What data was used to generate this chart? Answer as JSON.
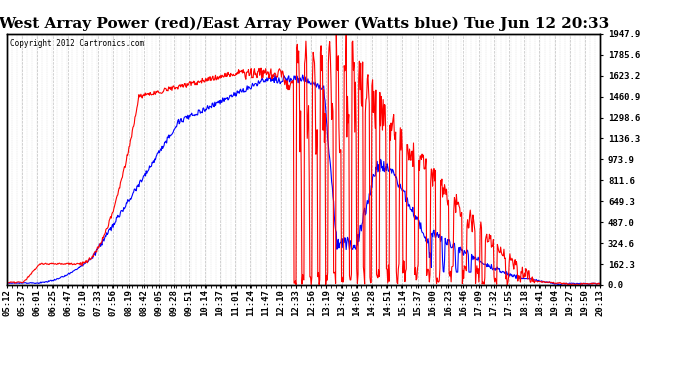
{
  "title": "West Array Power (red)/East Array Power (Watts blue) Tue Jun 12 20:33",
  "copyright": "Copyright 2012 Cartronics.com",
  "ylabel_right_ticks": [
    0.0,
    162.3,
    324.6,
    487.0,
    649.3,
    811.6,
    973.9,
    1136.3,
    1298.6,
    1460.9,
    1623.2,
    1785.6,
    1947.9
  ],
  "ymax": 1947.9,
  "ymin": 0.0,
  "bg_color": "#ffffff",
  "grid_color": "#bbbbbb",
  "title_fontsize": 11,
  "tick_label_fontsize": 6.5,
  "xtick_labels": [
    "05:12",
    "05:37",
    "06:01",
    "06:25",
    "06:47",
    "07:10",
    "07:33",
    "07:56",
    "08:19",
    "08:42",
    "09:05",
    "09:28",
    "09:51",
    "10:14",
    "10:37",
    "11:01",
    "11:24",
    "11:47",
    "12:10",
    "12:33",
    "12:56",
    "13:19",
    "13:42",
    "14:05",
    "14:28",
    "14:51",
    "15:14",
    "15:37",
    "16:00",
    "16:23",
    "16:46",
    "17:09",
    "17:32",
    "17:55",
    "18:18",
    "18:41",
    "19:04",
    "19:27",
    "19:50",
    "20:13"
  ],
  "red_color": "#ff0000",
  "blue_color": "#0000ff",
  "line_width": 0.8
}
